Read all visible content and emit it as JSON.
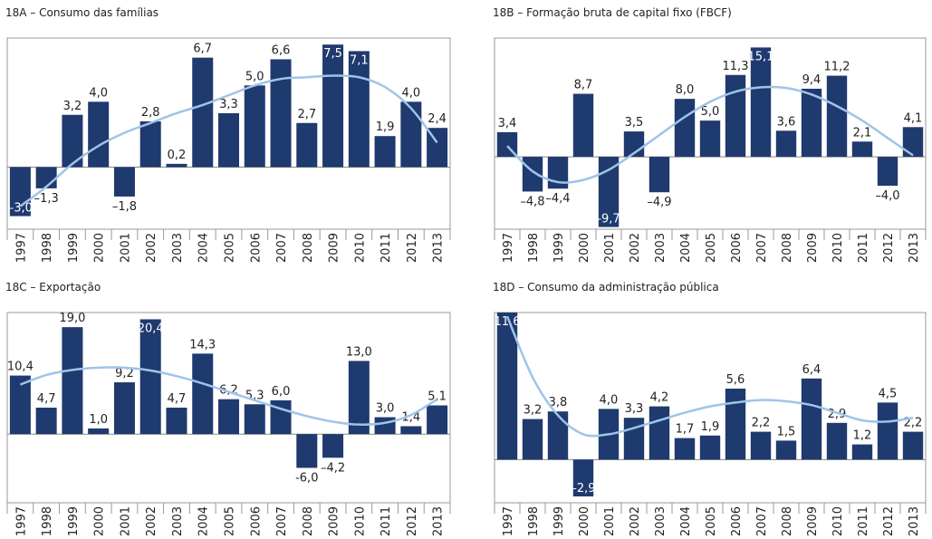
{
  "chart_data": [
    {
      "type": "bar",
      "title": "18A – Consumo das famílias",
      "categories": [
        "1997",
        "1998",
        "1999",
        "2000",
        "2001",
        "2002",
        "2003",
        "2004",
        "2005",
        "2006",
        "2007",
        "2008",
        "2009",
        "2010",
        "2011",
        "2012",
        "2013"
      ],
      "values": [
        -3.0,
        -1.3,
        3.2,
        4.0,
        -1.8,
        2.8,
        0.2,
        6.7,
        3.3,
        5.0,
        6.6,
        2.7,
        7.5,
        7.1,
        1.9,
        4.0,
        2.4
      ],
      "value_labels": [
        "–3,0",
        "–1,3",
        "3,2",
        "4,0",
        "–1,8",
        "2,8",
        "0,2",
        "6,7",
        "3,3",
        "5,0",
        "6,6",
        "2,7",
        "7,5",
        "7,1",
        "1,9",
        "4,0",
        "2,4"
      ],
      "trend_values": [
        -2.4,
        -1.2,
        0.2,
        1.3,
        2.1,
        2.7,
        3.3,
        3.8,
        4.4,
        5.0,
        5.4,
        5.5,
        5.6,
        5.5,
        4.9,
        3.6,
        1.5
      ],
      "color": "#1f3a6e",
      "trend_color": "#9fc4e8",
      "ylim": [
        -3.8,
        7.9
      ]
    },
    {
      "type": "bar",
      "title": "18B – Formação bruta de capital fixo (FBCF)",
      "categories": [
        "1997",
        "1998",
        "1999",
        "2000",
        "2001",
        "2002",
        "2003",
        "2004",
        "2005",
        "2006",
        "2007",
        "2008",
        "2009",
        "2010",
        "2011",
        "2012",
        "2013"
      ],
      "values": [
        3.4,
        -4.8,
        -4.4,
        8.7,
        -9.7,
        3.5,
        -4.9,
        8.0,
        5.0,
        11.3,
        15.1,
        3.6,
        9.4,
        11.2,
        2.1,
        -4.0,
        4.1
      ],
      "value_labels": [
        "3,4",
        "–4,8",
        "–4,4",
        "8,7",
        "-9,7",
        "3,5",
        "–4,9",
        "8,0",
        "5,0",
        "11,3",
        "15,1",
        "3,6",
        "9,4",
        "11,2",
        "2,1",
        "–4,0",
        "4,1"
      ],
      "trend_values": [
        1.5,
        -2.0,
        -3.5,
        -3.2,
        -1.8,
        0.5,
        3.0,
        5.5,
        7.6,
        9.0,
        9.6,
        9.5,
        8.6,
        7.0,
        5.0,
        2.6,
        0.2
      ],
      "color": "#1f3a6e",
      "trend_color": "#9fc4e8",
      "ylim": [
        -10,
        16.4
      ]
    },
    {
      "type": "bar",
      "title": "18C – Exportação",
      "categories": [
        "1997",
        "1998",
        "1999",
        "2000",
        "2001",
        "2002",
        "2003",
        "2004",
        "2005",
        "2006",
        "2007",
        "2008",
        "2009",
        "2010",
        "2011",
        "2012",
        "2013"
      ],
      "values": [
        10.4,
        4.7,
        19.0,
        1.0,
        9.2,
        20.4,
        4.7,
        14.3,
        6.2,
        5.3,
        6.0,
        -6.0,
        -4.2,
        13.0,
        3.0,
        1.4,
        5.1
      ],
      "value_labels": [
        "10,4",
        "4,7",
        "19,0",
        "1,0",
        "9,2",
        "20,4",
        "4,7",
        "14,3",
        "6,2",
        "5,3",
        "6,0",
        "-6,0",
        "–4,2",
        "13,0",
        "3,0",
        "1,4",
        "5,1"
      ],
      "trend_values": [
        8.8,
        10.5,
        11.4,
        11.8,
        11.8,
        11.3,
        10.3,
        9.0,
        7.5,
        6.0,
        4.5,
        3.2,
        2.2,
        1.7,
        2.0,
        3.4,
        6.2
      ],
      "color": "#1f3a6e",
      "trend_color": "#9fc4e8",
      "ylim": [
        -12.2,
        21.6
      ]
    },
    {
      "type": "bar",
      "title": "18D – Consumo da administração pública",
      "categories": [
        "1997",
        "1998",
        "1999",
        "2000",
        "2001",
        "2002",
        "2003",
        "2004",
        "2005",
        "2006",
        "2007",
        "2008",
        "2009",
        "2010",
        "2011",
        "2012",
        "2013"
      ],
      "values": [
        11.6,
        3.2,
        3.8,
        -2.9,
        4.0,
        3.3,
        4.2,
        1.7,
        1.9,
        5.6,
        2.2,
        1.5,
        6.4,
        2.9,
        1.2,
        4.5,
        2.2
      ],
      "value_labels": [
        "11,6",
        "3,2",
        "3,8",
        "–2,9",
        "4,0",
        "3,3",
        "4,2",
        "1,7",
        "1,9",
        "5,6",
        "2,2",
        "1,5",
        "6,4",
        "2,9",
        "1,2",
        "4,5",
        "2,2"
      ],
      "trend_values": [
        11.3,
        6.5,
        3.5,
        2.0,
        2.0,
        2.5,
        3.1,
        3.7,
        4.2,
        4.5,
        4.7,
        4.6,
        4.3,
        3.7,
        3.1,
        3.0,
        3.3
      ],
      "color": "#1f3a6e",
      "trend_color": "#9fc4e8",
      "ylim": [
        -3.4,
        11.6
      ]
    }
  ]
}
